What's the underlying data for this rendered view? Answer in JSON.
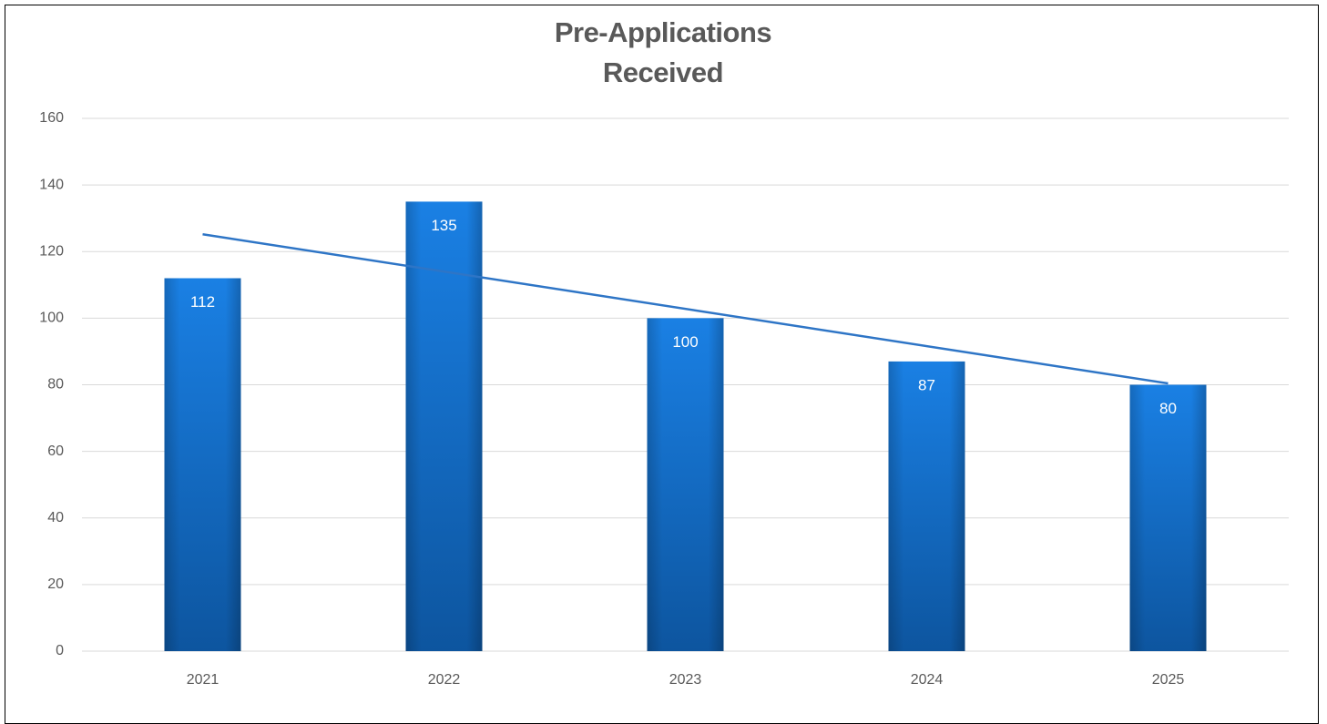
{
  "chart_data": {
    "type": "bar",
    "title": "Pre-Applications Received",
    "categories": [
      "2021",
      "2022",
      "2023",
      "2024",
      "2025"
    ],
    "values": [
      112,
      135,
      100,
      87,
      80
    ],
    "color": "#1670d0",
    "trendline": "linear",
    "trendline_color": "#2e75c6",
    "ylim": [
      0,
      160
    ],
    "yticks": [
      0,
      20,
      40,
      60,
      80,
      100,
      120,
      140,
      160
    ],
    "grid": true
  }
}
